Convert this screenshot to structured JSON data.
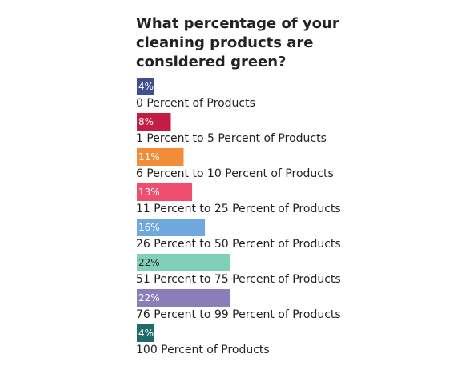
{
  "chart_data": {
    "type": "bar",
    "orientation": "horizontal",
    "title_lines": [
      "What percentage of your",
      "cleaning products are",
      "considered green?"
    ],
    "value_suffix": "%",
    "categories": [
      "0 Percent of Products",
      "1 Percent to 5 Percent of Products",
      "6 Percent to 10 Percent of Products",
      "11 Percent to 25 Percent of Products",
      "26 Percent to 50 Percent of Products",
      "51 Percent to 75 Percent of Products",
      "76 Percent to 99 Percent of Products",
      "100 Percent of Products"
    ],
    "values": [
      4,
      8,
      11,
      13,
      16,
      22,
      22,
      4
    ],
    "value_labels": [
      "4%",
      "8%",
      "11%",
      "13%",
      "16%",
      "22%",
      "22%",
      "4%"
    ],
    "colors": [
      "#3f4e8e",
      "#c51c44",
      "#f28c38",
      "#ee4f6e",
      "#6fa8dc",
      "#7fcfb9",
      "#8b7cba",
      "#1f6b6a"
    ],
    "xlim": [
      0,
      22
    ],
    "grid": false,
    "legend": "none"
  }
}
